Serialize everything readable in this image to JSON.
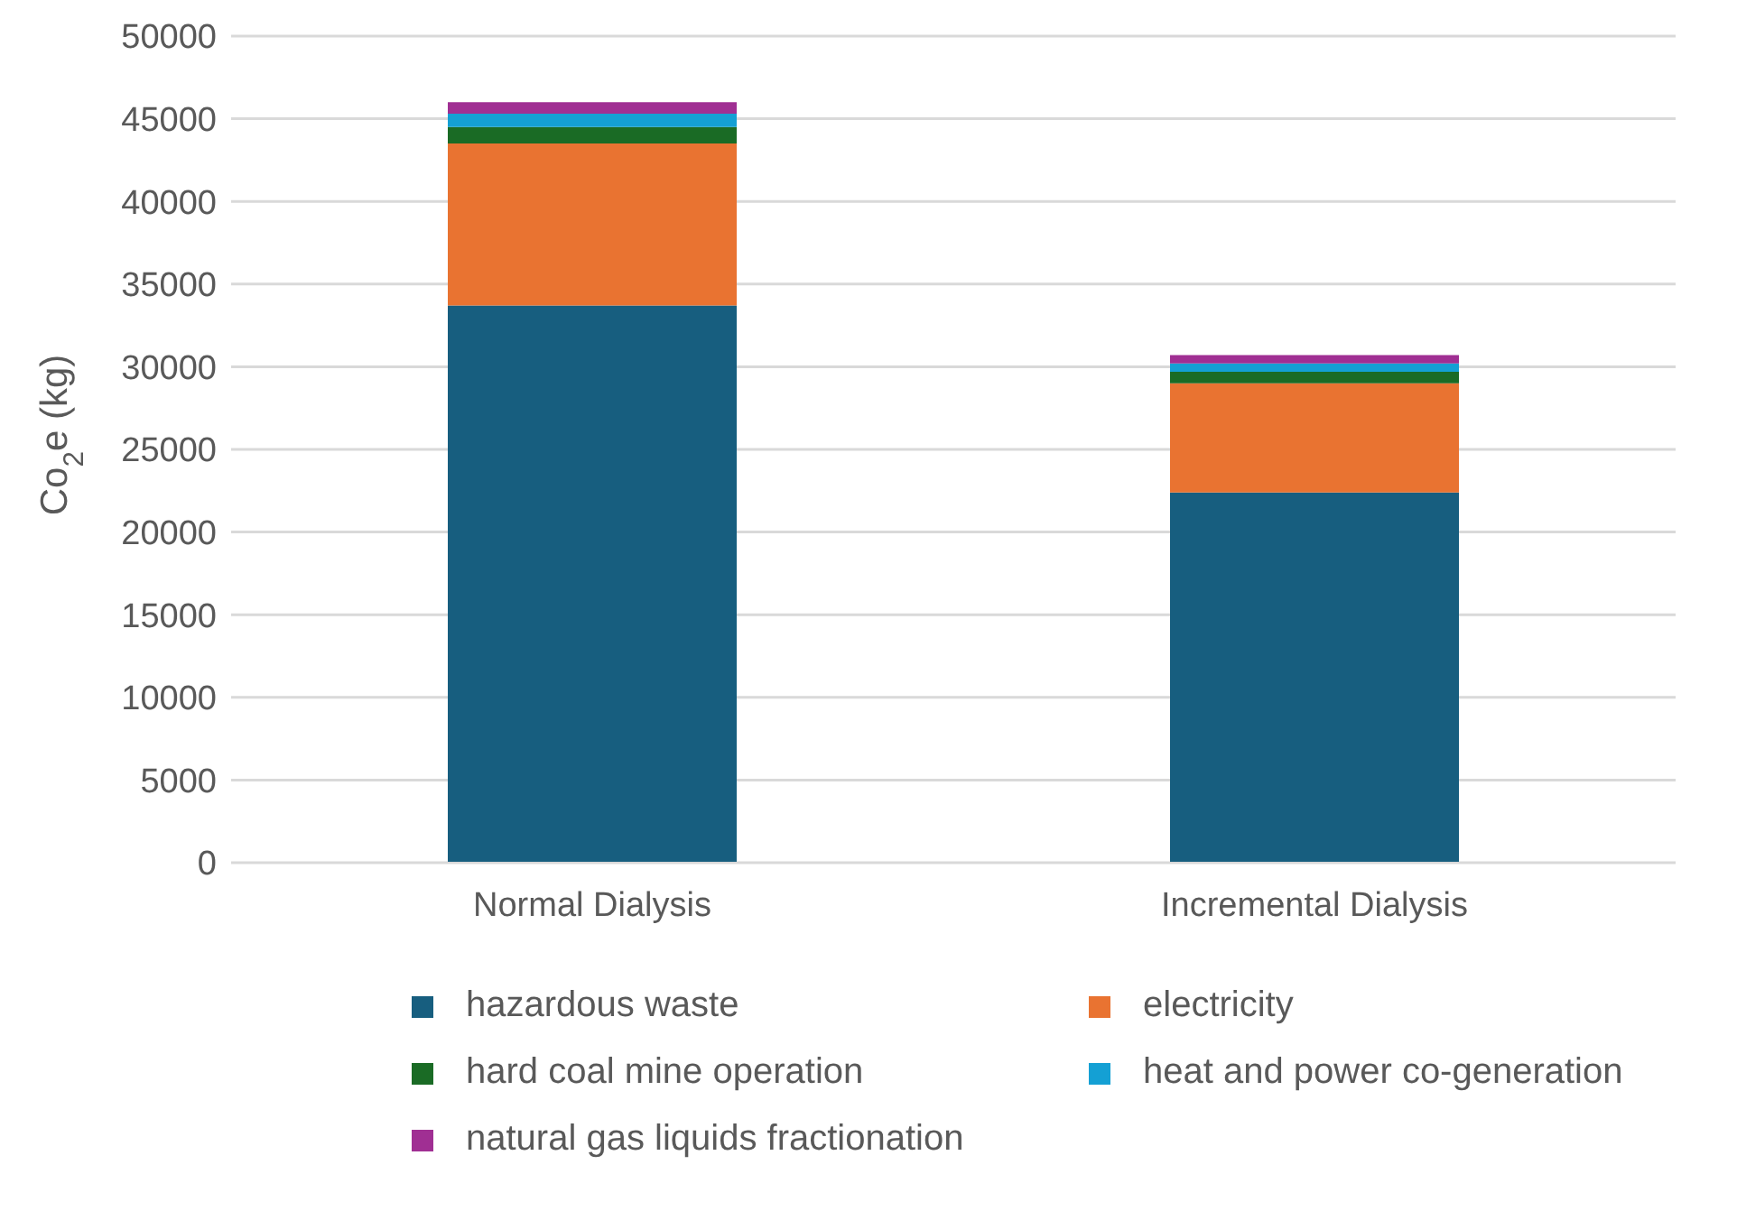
{
  "chart_data": {
    "type": "bar",
    "stacked": true,
    "ylabel": "Co$_{2}$e (kg)",
    "categories": [
      "Normal Dialysis",
      "Incremental Dialysis"
    ],
    "series": [
      {
        "name": "hazardous waste",
        "color": "#175e7f",
        "values": [
          33700,
          22400
        ]
      },
      {
        "name": "electricity",
        "color": "#e97331",
        "values": [
          9800,
          6600
        ]
      },
      {
        "name": "hard coal mine operation",
        "color": "#1a6b25",
        "values": [
          1000,
          700
        ]
      },
      {
        "name": "heat and power co-generation",
        "color": "#14a0d4",
        "values": [
          800,
          500
        ]
      },
      {
        "name": "natural gas liquids fractionation",
        "color": "#a02f93",
        "values": [
          700,
          500
        ]
      }
    ],
    "ylim": [
      0,
      50000
    ],
    "yticks": [
      0,
      5000,
      10000,
      15000,
      20000,
      25000,
      30000,
      35000,
      40000,
      45000,
      50000
    ],
    "grid": "y",
    "legend": "bottom"
  }
}
